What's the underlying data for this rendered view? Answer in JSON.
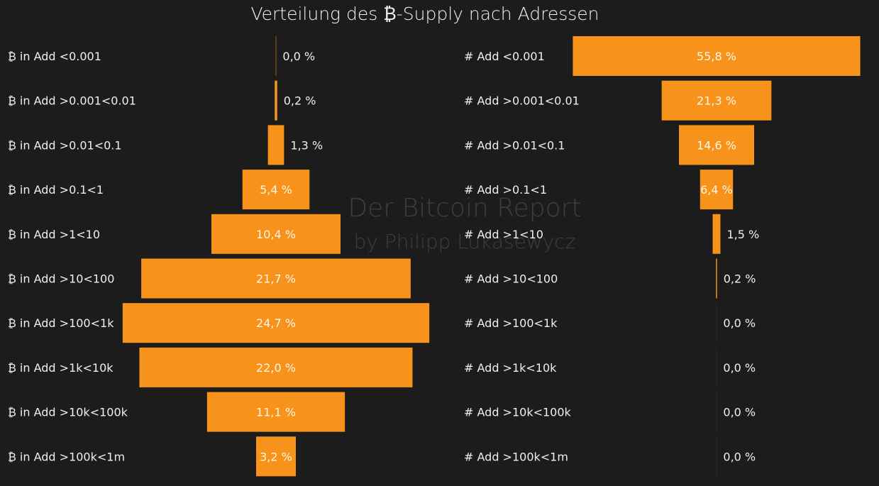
{
  "chart_data": [
    {
      "type": "bar",
      "orientation": "horizontal-funnel",
      "title": "Verteilung des ₿-Supply nach Adressen",
      "categories": [
        "₿ in Add <0.001",
        "₿ in Add >0.001<0.01",
        "₿ in Add >0.01<0.1",
        "₿ in Add >0.1<1",
        "₿ in Add >1<10",
        "₿ in Add >10<100",
        "₿ in Add >100<1k",
        "₿ in Add >1k<10k",
        "₿ in Add >10k<100k",
        "₿ in Add >100k<1m"
      ],
      "values": [
        0.0,
        0.2,
        1.3,
        5.4,
        10.4,
        21.7,
        24.7,
        22.0,
        11.1,
        3.2
      ],
      "value_labels": [
        "0,0 %",
        "0,2 %",
        "1,3 %",
        "5,4 %",
        "10,4 %",
        "21,7 %",
        "24,7 %",
        "22,0 %",
        "11,1 %",
        "3,2 %"
      ],
      "unit": "%"
    },
    {
      "type": "bar",
      "orientation": "horizontal-funnel",
      "categories": [
        "# Add <0.001",
        "# Add >0.001<0.01",
        "# Add >0.01<0.1",
        "# Add >0.1<1",
        "# Add >1<10",
        "# Add >10<100",
        "# Add >100<1k",
        "# Add >1k<10k",
        "# Add >10k<100k",
        "# Add >100k<1m"
      ],
      "values": [
        55.8,
        21.3,
        14.6,
        6.4,
        1.5,
        0.2,
        0.0,
        0.0,
        0.0,
        0.0
      ],
      "value_labels": [
        "55,8 %",
        "21,3 %",
        "14,6 %",
        "6,4 %",
        "1,5 %",
        "0,2 %",
        "0,0 %",
        "0,0 %",
        "0,0 %",
        "0,0 %"
      ],
      "unit": "%"
    }
  ],
  "watermark": {
    "line1": "Der Bitcoin Report",
    "line2": "by Philipp Lukasewycz"
  },
  "colors": {
    "background": "#1c1c1c",
    "bar": "#f7931a",
    "text": "#f0f0f0",
    "watermark": "#555555"
  }
}
